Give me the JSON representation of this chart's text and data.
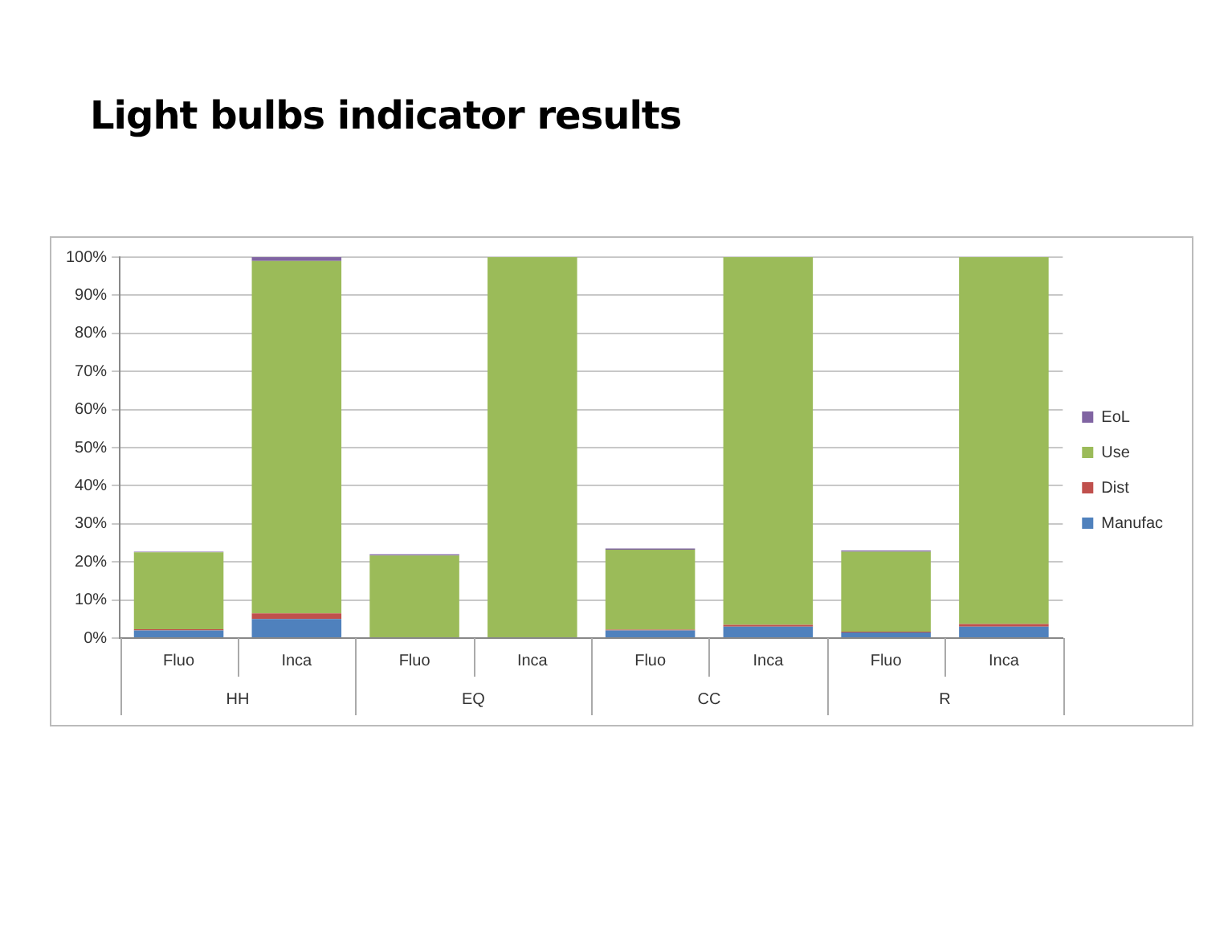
{
  "chart_data": {
    "type": "bar",
    "title": "Light bulbs indicator results",
    "stacked": true,
    "categories": [
      "Fluo",
      "Inca",
      "Fluo",
      "Inca",
      "Fluo",
      "Inca",
      "Fluo",
      "Inca"
    ],
    "annotations": [
      "HH",
      "EQ",
      "CC",
      "R"
    ],
    "series": [
      {
        "name": "Manufac",
        "color": "#4f81bd",
        "values": [
          2,
          5,
          0.2,
          0.2,
          2,
          3,
          1.5,
          3
        ]
      },
      {
        "name": "Dist",
        "color": "#c0504d",
        "values": [
          0.3,
          1.5,
          0,
          0,
          0.2,
          0.5,
          0.2,
          0.7
        ]
      },
      {
        "name": "Use",
        "color": "#9bbb59",
        "values": [
          20.2,
          92.5,
          21.5,
          99.8,
          21,
          96.5,
          21,
          96.3
        ]
      },
      {
        "name": "EoL",
        "color": "#8064a2",
        "values": [
          0.2,
          1,
          0.3,
          0,
          0.3,
          0,
          0.3,
          0
        ]
      }
    ],
    "ylim": [
      0,
      100
    ],
    "yticks": [
      {
        "value": 0,
        "label": "0%"
      },
      {
        "value": 10,
        "label": "10%"
      },
      {
        "value": 20,
        "label": "20%"
      },
      {
        "value": 30,
        "label": "30%"
      },
      {
        "value": 40,
        "label": "40%"
      },
      {
        "value": 50,
        "label": "50%"
      },
      {
        "value": 60,
        "label": "60%"
      },
      {
        "value": 70,
        "label": "70%"
      },
      {
        "value": 80,
        "label": "80%"
      },
      {
        "value": 90,
        "label": "90%"
      },
      {
        "value": 100,
        "label": "100%"
      }
    ],
    "grid": "y",
    "legend": "right"
  }
}
